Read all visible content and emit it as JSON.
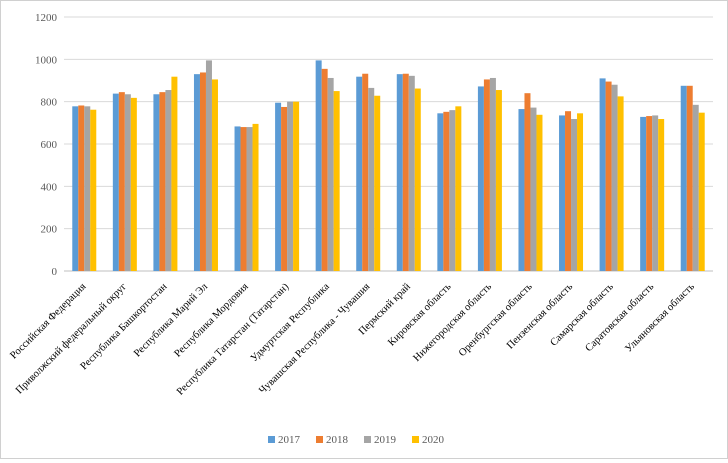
{
  "chart_data": {
    "type": "bar",
    "title": "",
    "xlabel": "",
    "ylabel": "",
    "ylim": [
      0,
      1200
    ],
    "yticks": [
      "0",
      "200",
      "400",
      "600",
      "800",
      "1000",
      "1200"
    ],
    "grid": true,
    "legend_position": "bottom",
    "categories": [
      "Российская Федерация",
      "Приволжский федеральный округ",
      "Республика Башкортостан",
      "Республика Марий Эл",
      "Республика Мордовия",
      "Республика Татарстан (Татарстан)",
      "Удмуртская Республика",
      "Чувашская Республика - Чувашия",
      "Пермский край",
      "Кировская область",
      "Нижегородская область",
      "Оренбургская область",
      "Пензенская область",
      "Самарская область",
      "Саратовская область",
      "Ульяновская область"
    ],
    "series": [
      {
        "name": "2017",
        "color": "#5b9bd5",
        "values": [
          778,
          838,
          835,
          930,
          683,
          795,
          995,
          918,
          930,
          745,
          872,
          765,
          735,
          910,
          728,
          875
        ]
      },
      {
        "name": "2018",
        "color": "#ed7d31",
        "values": [
          782,
          845,
          845,
          938,
          680,
          775,
          955,
          932,
          932,
          752,
          905,
          840,
          755,
          895,
          732,
          875
        ]
      },
      {
        "name": "2019",
        "color": "#a5a5a5",
        "values": [
          778,
          835,
          855,
          995,
          680,
          800,
          912,
          865,
          922,
          760,
          912,
          772,
          718,
          880,
          735,
          785
        ]
      },
      {
        "name": "2020",
        "color": "#ffc000",
        "values": [
          762,
          818,
          918,
          905,
          695,
          800,
          850,
          828,
          862,
          778,
          855,
          738,
          745,
          825,
          718,
          748
        ]
      }
    ]
  }
}
